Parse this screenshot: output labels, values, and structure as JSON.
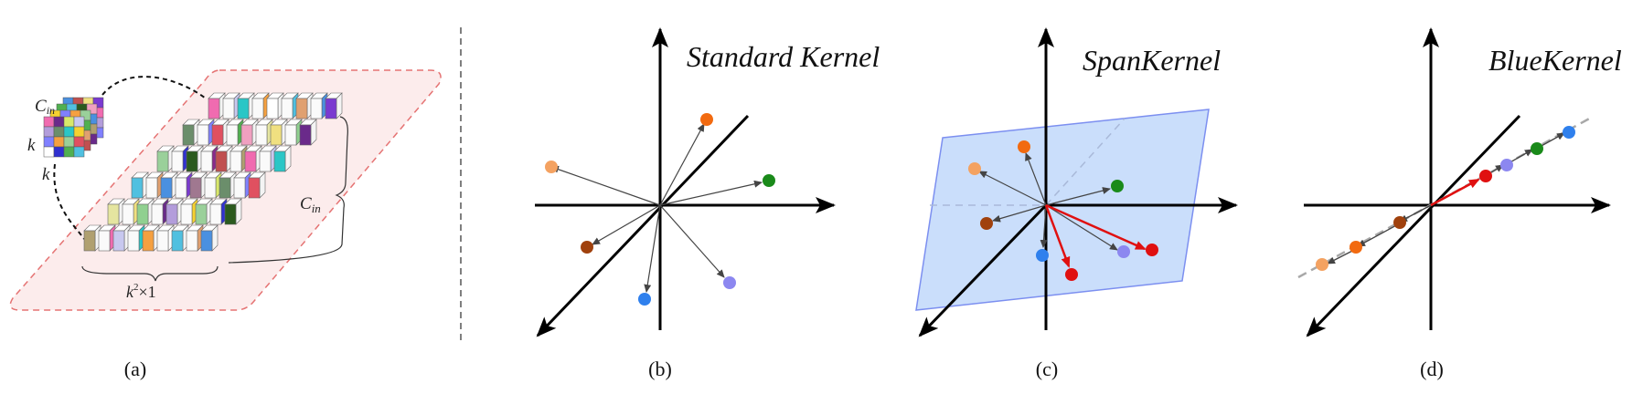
{
  "panel_a": {
    "label_cin_top": "C",
    "label_cin_top_sub": "in",
    "label_k_left": "k",
    "label_k_bottom": "k",
    "label_cin_right": "C",
    "label_cin_right_sub": "in",
    "label_k2": "k",
    "label_k2_sup": "2",
    "label_k2_rest": "×1",
    "caption": "(a)"
  },
  "panel_b": {
    "title": "Standard Kernel",
    "caption": "(b)"
  },
  "panel_c": {
    "title": "SpanKernel",
    "caption": "(c)"
  },
  "panel_d": {
    "title": "BlueKernel",
    "caption": "(d)"
  },
  "colors": {
    "light_orange": "#f4a261",
    "orange": "#f26a10",
    "green": "#1a8a1a",
    "brown": "#a0410d",
    "blue": "#2f80ed",
    "lavender": "#8c87f0",
    "red": "#e01010",
    "plane_fill": "#c7dcfb",
    "plane_stroke": "#7c8ff0",
    "dashed_region": "#fcecec",
    "dashed_region_stroke": "#e57373"
  },
  "cube_palette": [
    "#f06bb0",
    "#6a2a8a",
    "#d8e86a",
    "#c8c8ef",
    "#b39ddb",
    "#6b8e6b",
    "#2ac6c6",
    "#f5d130",
    "#8080ff",
    "#f5a040",
    "#9ad09a",
    "#e05060",
    "#ffffff",
    "#3030d0",
    "#50b050",
    "#50c0e0",
    "#2b5a1e",
    "#f0a0c0",
    "#e0a070",
    "#8a2a8a",
    "#e5e5a0",
    "#4a90e0",
    "#c05050",
    "#f0e080",
    "#7a3ad0",
    "#b0a070",
    "#90d090",
    "#a07890"
  ]
}
